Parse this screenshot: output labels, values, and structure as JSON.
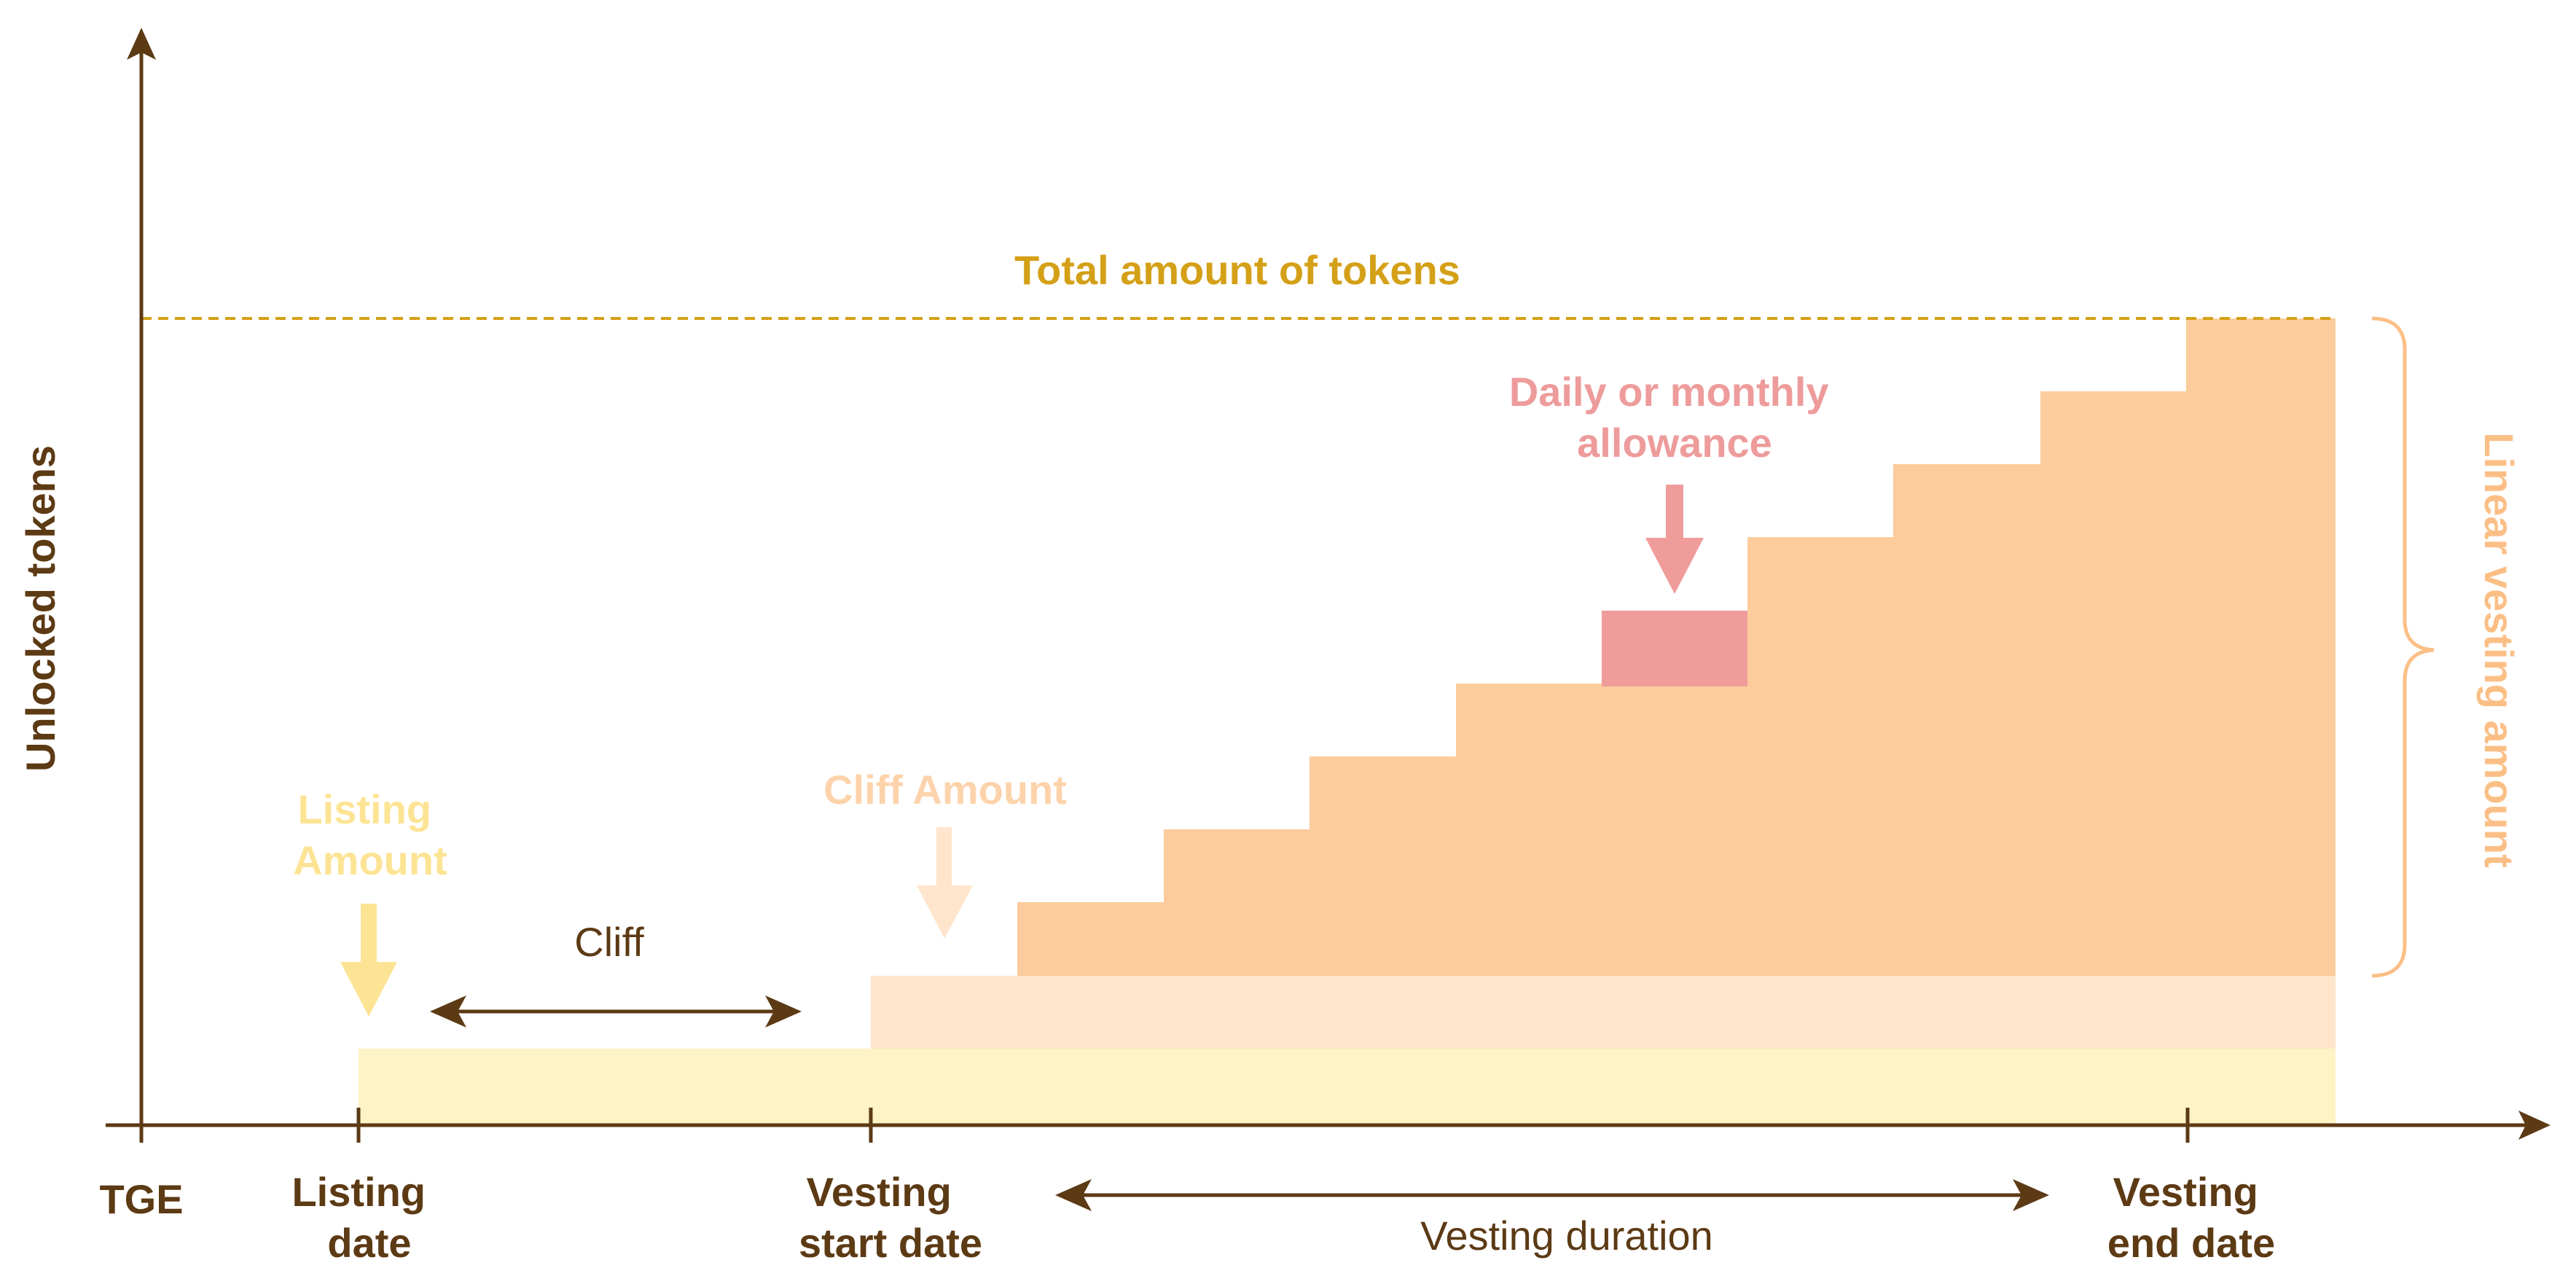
{
  "axes": {
    "y_label": "Unlocked tokens",
    "x_ticks": {
      "tge": "TGE",
      "listing": [
        "Listing",
        "date"
      ],
      "vesting_start": [
        "Vesting",
        "start date"
      ],
      "vesting_end": [
        "Vesting",
        "end date"
      ]
    }
  },
  "annotations": {
    "total": "Total amount of tokens",
    "listing_amount": [
      "Listing",
      "Amount"
    ],
    "cliff_amount": "Cliff Amount",
    "cliff": "Cliff",
    "allowance": [
      "Daily or monthly",
      "allowance"
    ],
    "vesting_duration": "Vesting duration",
    "linear_vesting": "Linear vesting amount"
  },
  "colors": {
    "axis": "#5c3a14",
    "total_line": "#d4a017",
    "listing_band": "#fef3c4",
    "listing_text": "#fde494",
    "cliff_band": "#fee5cc",
    "cliff_text": "#fdd3ab",
    "vesting_steps": "#fccc9c",
    "allowance": "#f09c9a",
    "allowance_text": "#ee9b9b",
    "brace": "#fbbf86",
    "linear_text": "#fbbf86"
  }
}
